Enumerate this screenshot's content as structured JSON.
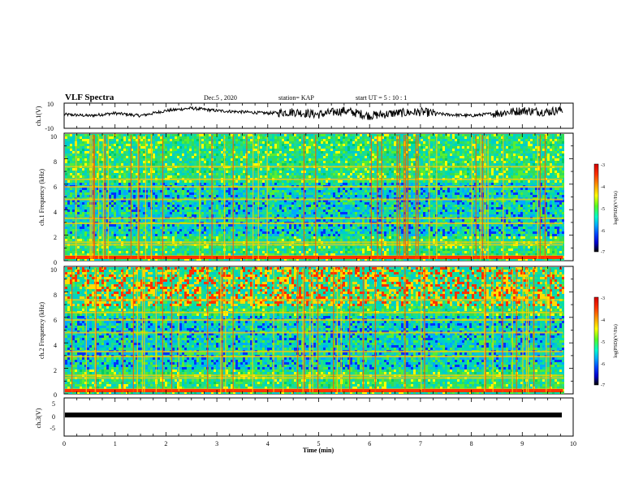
{
  "header": {
    "title": "VLF Spectra",
    "date": "Dec.5 , 2020",
    "station": "station= KAP",
    "start": "start  UT =  5 : 10 : 1"
  },
  "colorbar": {
    "label": "log(PSD)(V²/Hz)",
    "ticks": [
      "-3",
      "-4",
      "-5",
      "-6",
      "-7"
    ],
    "colors": [
      "#d40000",
      "#ff3300",
      "#ffbb00",
      "#ffff00",
      "#55ff22",
      "#00ffcc",
      "#00aaff",
      "#0044ff",
      "#0000cc",
      "#000000"
    ]
  },
  "chart_data": [
    {
      "type": "line",
      "panel": "ch1_waveform",
      "ylabel": "ch.1(V)",
      "ylim": [
        -10,
        10
      ],
      "yticks": [
        "10",
        "-10"
      ],
      "xlim": [
        0,
        10
      ],
      "x_min": [
        0,
        0.5,
        1.0,
        1.5,
        2.0,
        2.5,
        3.0,
        3.5,
        4.0,
        4.5,
        5.0,
        5.5,
        6.0,
        6.5,
        7.0,
        7.5,
        8.0,
        8.5,
        9.0,
        9.5,
        9.8
      ],
      "y": [
        1,
        0,
        2,
        0,
        4,
        6,
        4,
        3,
        2,
        3,
        1,
        4,
        0,
        2,
        3,
        1,
        0,
        2,
        4,
        3,
        5
      ]
    },
    {
      "type": "heatmap",
      "panel": "ch1_spectrogram",
      "ylabel": "ch.1 Frequency (kHz)",
      "ylim": [
        0,
        10
      ],
      "yticks": [
        "0",
        "2",
        "4",
        "6",
        "8",
        "10"
      ],
      "xlim": [
        0,
        10
      ],
      "value_label": "log(PSD)(V²/Hz)",
      "value_range": [
        -7,
        -3
      ]
    },
    {
      "type": "heatmap",
      "panel": "ch2_spectrogram",
      "ylabel": "ch.2 Frequency (kHz)",
      "ylim": [
        0,
        10
      ],
      "yticks": [
        "0",
        "2",
        "4",
        "6",
        "8",
        "10"
      ],
      "xlim": [
        0,
        10
      ],
      "value_label": "log(PSD)(V²/Hz)",
      "value_range": [
        -7,
        -3
      ]
    },
    {
      "type": "line",
      "panel": "ch3_waveform",
      "ylabel": "ch.3(V)",
      "ylim": [
        -5,
        5
      ],
      "yticks": [
        "5",
        "0",
        "-5"
      ],
      "xlim": [
        0,
        10
      ],
      "x_min": [
        0,
        9.8
      ],
      "y": [
        0,
        0
      ]
    }
  ],
  "xaxis": {
    "label": "Time  (min)",
    "ticks": [
      "0",
      "1",
      "2",
      "3",
      "4",
      "5",
      "6",
      "7",
      "8",
      "9",
      "10"
    ]
  }
}
